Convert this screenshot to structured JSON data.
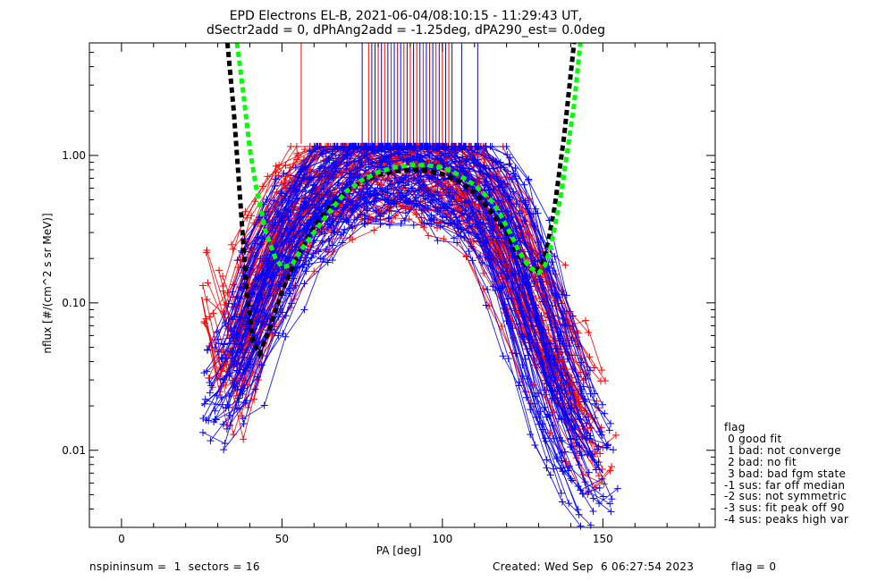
{
  "title_line1": "EPD Electrons EL-B, 2021-06-04/08:10:15 - 11:29:43 UT,",
  "title_line2": "dSectr2add = 0, dPhAng2add = -1.25deg, dPA290_est=   0.0deg",
  "footer": {
    "left": "nspininsum =  1  sectors = 16",
    "created": "Created: Wed Sep  6 06:27:54 2023",
    "flag": "flag = 0"
  },
  "legend": {
    "title": "flag",
    "entries": [
      " 0 good fit",
      " 1 bad: not converge",
      " 2 bad: no fit",
      " 3 bad: bad fgm state",
      "-1 sus: far off median",
      "-2 sus: not symmetric",
      "-3 sus: fit peak off 90",
      "-4 sus: peaks high var"
    ]
  },
  "colors": {
    "red_series": "#ff0000",
    "blue_series": "#0000ff",
    "black_fit": "#000000",
    "green_fit": "#00ff00"
  },
  "chart_data": {
    "type": "line",
    "xlabel": "PA [deg]",
    "ylabel": "nflux [#/(cm^2 s sr MeV)]",
    "xlim": [
      -10,
      185
    ],
    "ylim": [
      0.003,
      5.8
    ],
    "y_scale": "log",
    "x_ticks": [
      0,
      50,
      100,
      150
    ],
    "x_ticklabels": [
      "0",
      "50",
      "100",
      "150"
    ],
    "y_ticks": [
      0.01,
      0.1,
      1.0
    ],
    "y_ticklabels": [
      "0.01",
      "0.10",
      "1.00"
    ],
    "grid": false,
    "series": [
      {
        "color": "red",
        "description_points": [
          [
            25,
            0.11
          ],
          [
            30,
            0.03
          ],
          [
            35,
            0.05
          ],
          [
            40,
            0.12
          ],
          [
            45,
            0.2
          ],
          [
            50,
            0.35
          ],
          [
            55,
            0.5
          ],
          [
            60,
            0.55
          ],
          [
            65,
            0.75
          ],
          [
            70,
            0.85
          ],
          [
            75,
            0.95
          ],
          [
            80,
            1.0
          ],
          [
            85,
            0.98
          ],
          [
            90,
            0.95
          ],
          [
            95,
            0.9
          ],
          [
            100,
            0.8
          ],
          [
            105,
            0.7
          ],
          [
            110,
            0.55
          ],
          [
            115,
            0.4
          ],
          [
            120,
            0.25
          ],
          [
            125,
            0.12
          ],
          [
            130,
            0.07
          ],
          [
            135,
            0.05
          ],
          [
            140,
            0.03
          ],
          [
            145,
            0.02
          ],
          [
            150,
            0.012
          ]
        ]
      },
      {
        "color": "blue",
        "description_points": [
          [
            25,
            0.02
          ],
          [
            30,
            0.025
          ],
          [
            35,
            0.04
          ],
          [
            40,
            0.08
          ],
          [
            45,
            0.15
          ],
          [
            50,
            0.25
          ],
          [
            55,
            0.35
          ],
          [
            60,
            0.45
          ],
          [
            65,
            0.6
          ],
          [
            70,
            0.75
          ],
          [
            75,
            0.85
          ],
          [
            80,
            0.9
          ],
          [
            85,
            0.92
          ],
          [
            90,
            0.95
          ],
          [
            95,
            0.9
          ],
          [
            100,
            0.85
          ],
          [
            105,
            0.75
          ],
          [
            110,
            0.6
          ],
          [
            115,
            0.45
          ],
          [
            120,
            0.3
          ],
          [
            125,
            0.15
          ],
          [
            130,
            0.07
          ],
          [
            135,
            0.03
          ],
          [
            140,
            0.015
          ],
          [
            145,
            0.01
          ],
          [
            150,
            0.007
          ]
        ]
      },
      {
        "color": "black",
        "style": "dashed",
        "description_points": [
          [
            33,
            5.8
          ],
          [
            35,
            2.0
          ],
          [
            37,
            0.5
          ],
          [
            39,
            0.12
          ],
          [
            41,
            0.055
          ],
          [
            43,
            0.045
          ],
          [
            46,
            0.065
          ],
          [
            50,
            0.12
          ],
          [
            55,
            0.21
          ],
          [
            60,
            0.33
          ],
          [
            65,
            0.45
          ],
          [
            70,
            0.57
          ],
          [
            75,
            0.67
          ],
          [
            80,
            0.74
          ],
          [
            85,
            0.78
          ],
          [
            90,
            0.8
          ],
          [
            95,
            0.79
          ],
          [
            100,
            0.75
          ],
          [
            105,
            0.67
          ],
          [
            110,
            0.56
          ],
          [
            115,
            0.42
          ],
          [
            120,
            0.3
          ],
          [
            123,
            0.22
          ],
          [
            126,
            0.18
          ],
          [
            129,
            0.16
          ],
          [
            132,
            0.2
          ],
          [
            135,
            0.45
          ],
          [
            138,
            1.4
          ],
          [
            141,
            5.8
          ]
        ]
      },
      {
        "color": "green",
        "style": "dashed",
        "description_points": [
          [
            36,
            5.8
          ],
          [
            38,
            2.6
          ],
          [
            40,
            1.1
          ],
          [
            42,
            0.6
          ],
          [
            45,
            0.3
          ],
          [
            48,
            0.2
          ],
          [
            50,
            0.175
          ],
          [
            53,
            0.18
          ],
          [
            56,
            0.23
          ],
          [
            60,
            0.3
          ],
          [
            65,
            0.42
          ],
          [
            70,
            0.57
          ],
          [
            75,
            0.68
          ],
          [
            80,
            0.77
          ],
          [
            85,
            0.83
          ],
          [
            90,
            0.86
          ],
          [
            95,
            0.86
          ],
          [
            100,
            0.83
          ],
          [
            105,
            0.74
          ],
          [
            110,
            0.63
          ],
          [
            115,
            0.5
          ],
          [
            118,
            0.4
          ],
          [
            121,
            0.3
          ],
          [
            124,
            0.22
          ],
          [
            127,
            0.175
          ],
          [
            130,
            0.16
          ],
          [
            132,
            0.18
          ],
          [
            134,
            0.25
          ],
          [
            137,
            0.55
          ],
          [
            139,
            1.1
          ],
          [
            141,
            2.2
          ],
          [
            143,
            5.8
          ]
        ]
      }
    ],
    "vertical_lines": [
      {
        "color": "red",
        "x": [
          56,
          77,
          80,
          82,
          84,
          86,
          88,
          90,
          92,
          94,
          96,
          98,
          100,
          102
        ]
      },
      {
        "color": "blue",
        "x": [
          75,
          78,
          79,
          81,
          83,
          85,
          87,
          89,
          91,
          93,
          95,
          97,
          99,
          101,
          103,
          106,
          111
        ]
      }
    ]
  }
}
